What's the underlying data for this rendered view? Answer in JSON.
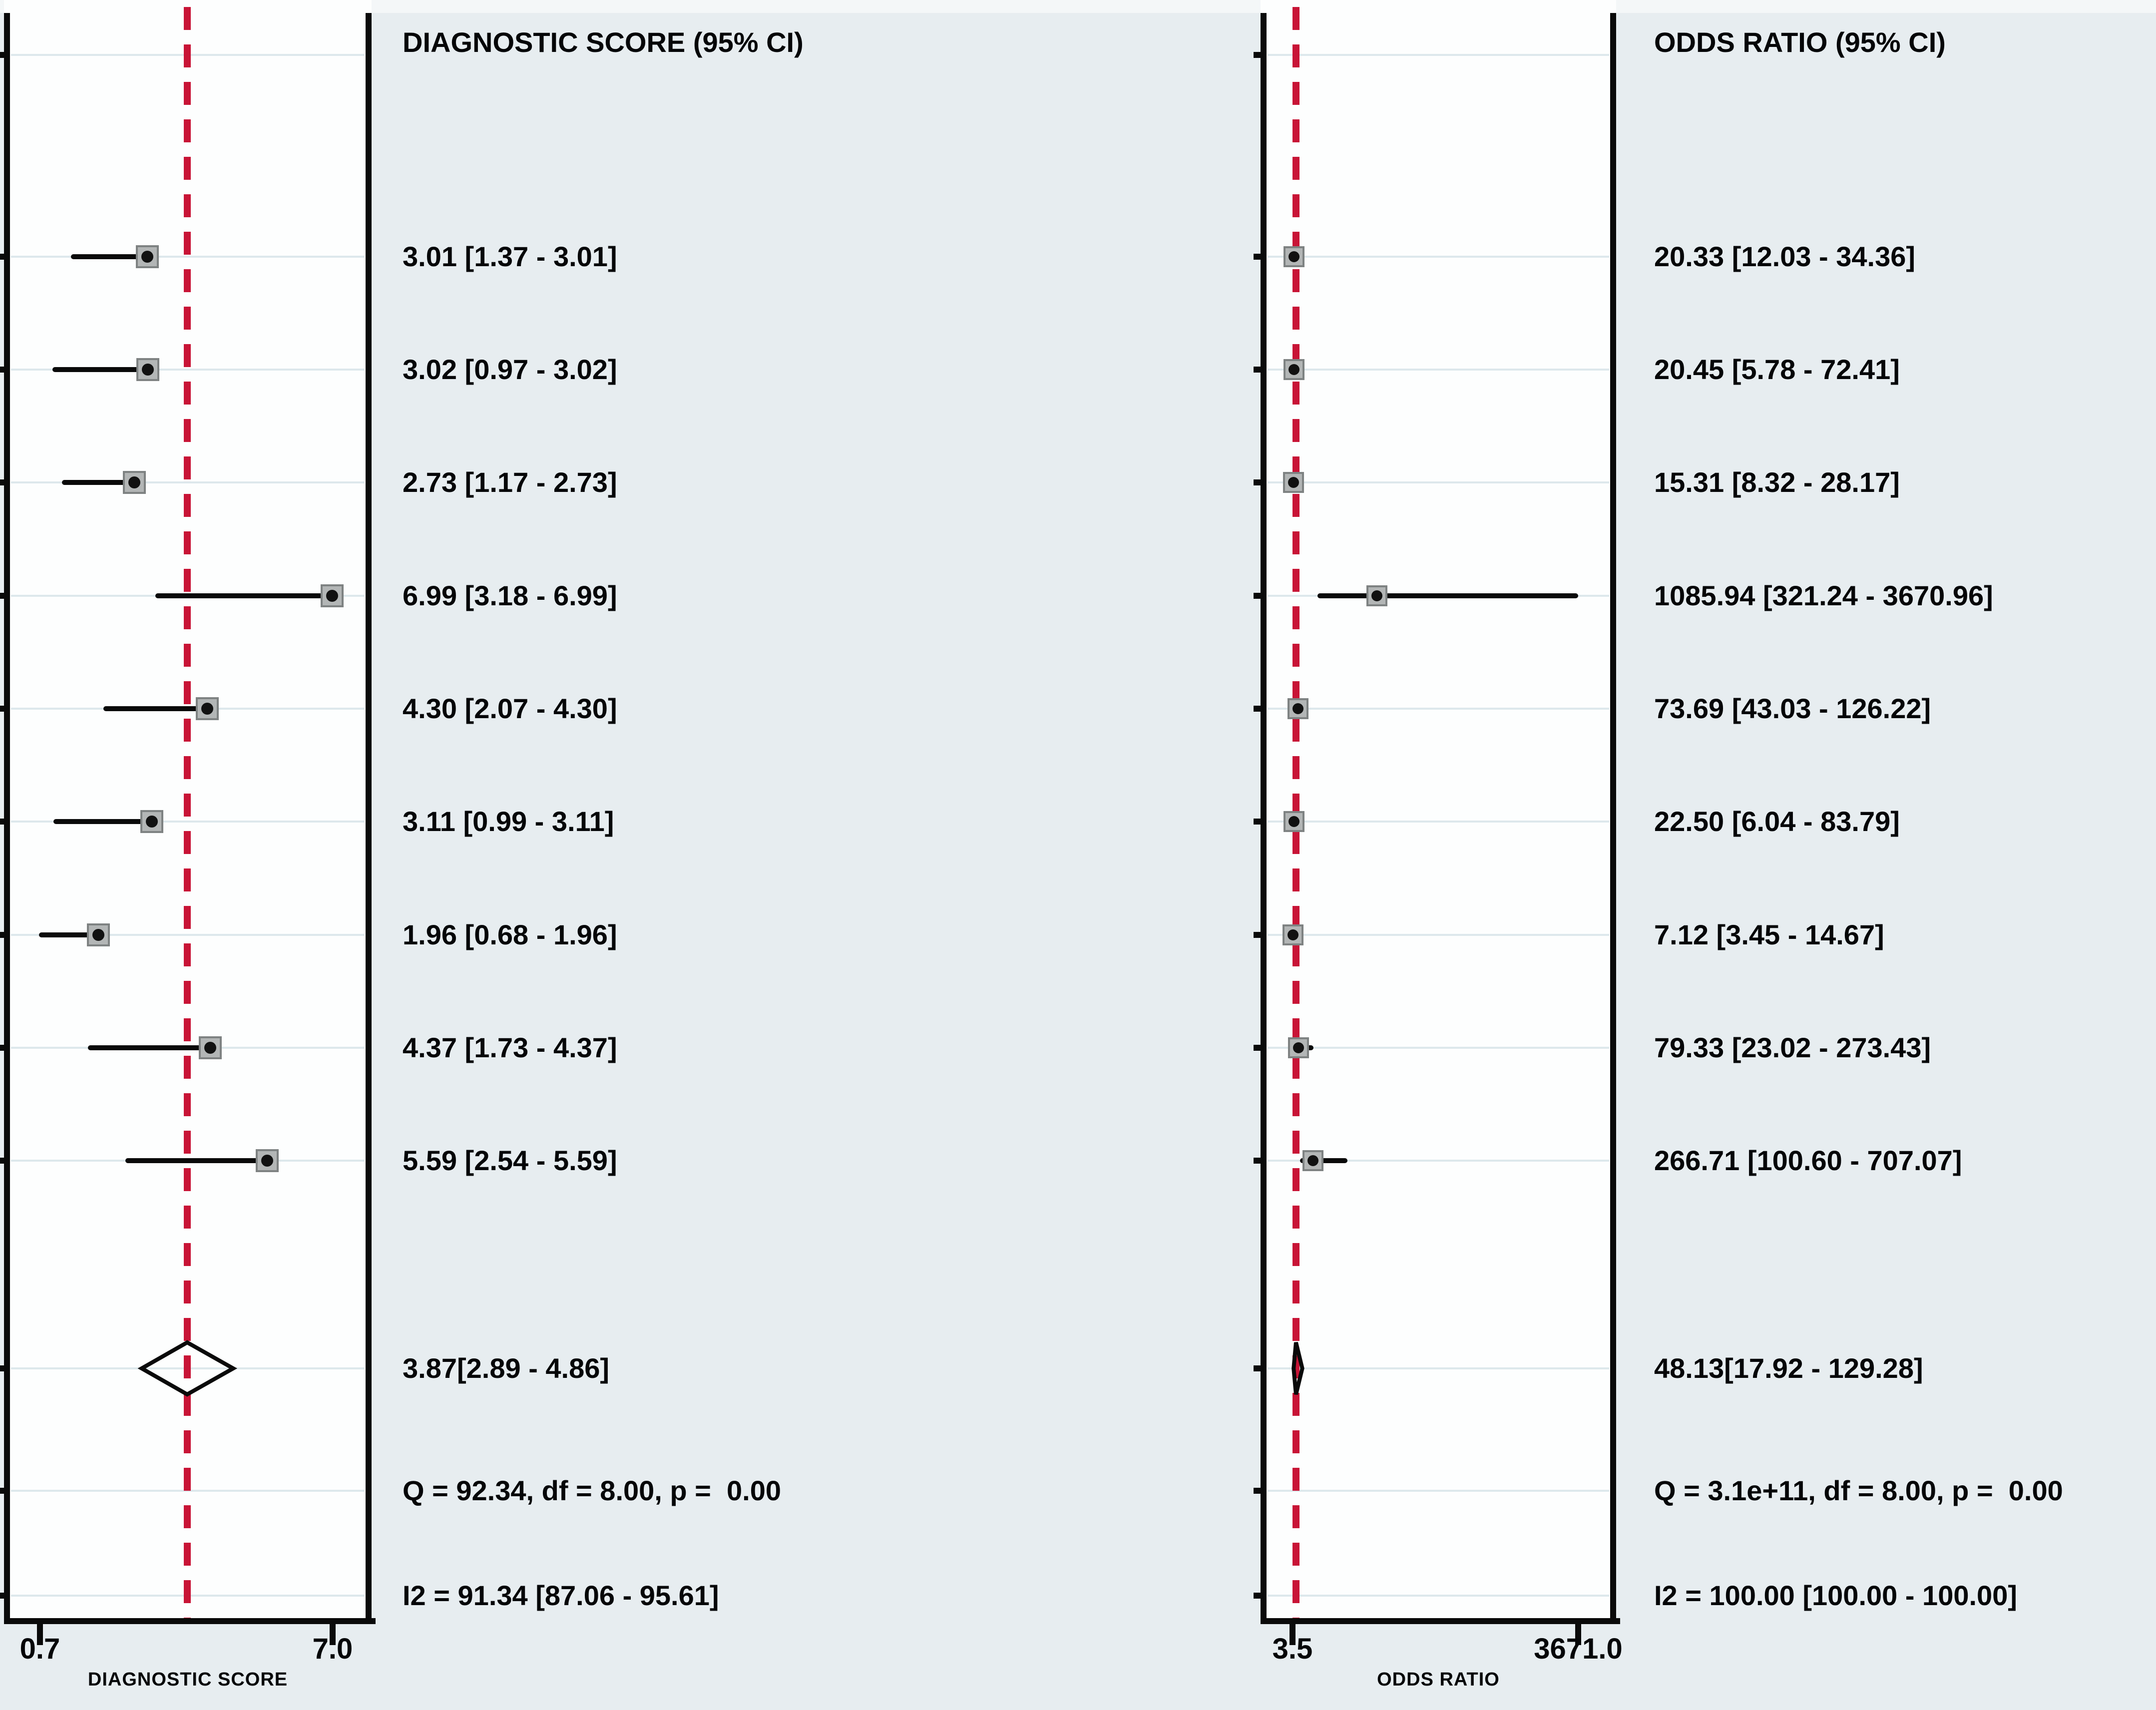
{
  "colors": {
    "background": "#e7edf0",
    "plot_background": "#fdfefe",
    "gridline": "#dde8ec",
    "axis": "#0a0a0a",
    "pooled_line_red": "#c81436",
    "marker_fill": "#b3b6b6",
    "marker_border": "#7e8282",
    "marker_dot": "#111111",
    "text": "#050608"
  },
  "chart_data": [
    {
      "type": "forest",
      "panel": "left",
      "title": "DIAGNOSTIC SCORE (95% CI)",
      "x_axis": {
        "scale": "linear",
        "min": 0.7,
        "max": 7.0,
        "min_label": "0.7",
        "max_label": "7.0",
        "caption": "DIAGNOSTIC SCORE"
      },
      "pooled_reference_line": 3.87,
      "grid": true,
      "studies": [
        {
          "estimate": 3.01,
          "ci_lower": 1.37,
          "ci_upper": 3.01,
          "label": "3.01 [1.37 - 3.01]"
        },
        {
          "estimate": 3.02,
          "ci_lower": 0.97,
          "ci_upper": 3.02,
          "label": "3.02 [0.97 - 3.02]"
        },
        {
          "estimate": 2.73,
          "ci_lower": 1.17,
          "ci_upper": 2.73,
          "label": "2.73 [1.17 - 2.73]"
        },
        {
          "estimate": 6.99,
          "ci_lower": 3.18,
          "ci_upper": 6.99,
          "label": "6.99 [3.18 - 6.99]"
        },
        {
          "estimate": 4.3,
          "ci_lower": 2.07,
          "ci_upper": 4.3,
          "label": "4.30 [2.07 - 4.30]"
        },
        {
          "estimate": 3.11,
          "ci_lower": 0.99,
          "ci_upper": 3.11,
          "label": "3.11 [0.99 - 3.11]"
        },
        {
          "estimate": 1.96,
          "ci_lower": 0.68,
          "ci_upper": 1.96,
          "label": "1.96 [0.68 - 1.96]"
        },
        {
          "estimate": 4.37,
          "ci_lower": 1.73,
          "ci_upper": 4.37,
          "label": "4.37 [1.73 - 4.37]"
        },
        {
          "estimate": 5.59,
          "ci_lower": 2.54,
          "ci_upper": 5.59,
          "label": "5.59 [2.54 - 5.59]"
        }
      ],
      "summary": {
        "estimate": 3.87,
        "ci_lower": 2.89,
        "ci_upper": 4.86,
        "label": "3.87[2.89 - 4.86]"
      },
      "heterogeneity_label": "Q = 92.34, df = 8.00, p =  0.00",
      "i2_label": "I2 = 91.34 [87.06 - 95.61]"
    },
    {
      "type": "forest",
      "panel": "right",
      "title": "ODDS RATIO (95% CI)",
      "x_axis": {
        "scale": "linear",
        "min": 3.5,
        "max": 3671.0,
        "min_label": "3.5",
        "max_label": "3671.0",
        "caption": "ODDS RATIO"
      },
      "pooled_reference_line": 48.13,
      "grid": true,
      "studies": [
        {
          "estimate": 20.33,
          "ci_lower": 12.03,
          "ci_upper": 34.36,
          "label": "20.33 [12.03 - 34.36]"
        },
        {
          "estimate": 20.45,
          "ci_lower": 5.78,
          "ci_upper": 72.41,
          "label": "20.45 [5.78 - 72.41]"
        },
        {
          "estimate": 15.31,
          "ci_lower": 8.32,
          "ci_upper": 28.17,
          "label": "15.31 [8.32 - 28.17]"
        },
        {
          "estimate": 1085.94,
          "ci_lower": 321.24,
          "ci_upper": 3670.96,
          "label": "1085.94 [321.24 - 3670.96]"
        },
        {
          "estimate": 73.69,
          "ci_lower": 43.03,
          "ci_upper": 126.22,
          "label": "73.69 [43.03 - 126.22]"
        },
        {
          "estimate": 22.5,
          "ci_lower": 6.04,
          "ci_upper": 83.79,
          "label": "22.50 [6.04 - 83.79]"
        },
        {
          "estimate": 7.12,
          "ci_lower": 3.45,
          "ci_upper": 14.67,
          "label": "7.12 [3.45 - 14.67]"
        },
        {
          "estimate": 79.33,
          "ci_lower": 23.02,
          "ci_upper": 273.43,
          "label": "79.33 [23.02 - 273.43]"
        },
        {
          "estimate": 266.71,
          "ci_lower": 100.6,
          "ci_upper": 707.07,
          "label": "266.71 [100.60 - 707.07]"
        }
      ],
      "summary": {
        "estimate": 48.13,
        "ci_lower": 17.92,
        "ci_upper": 129.28,
        "label": "48.13[17.92 - 129.28]"
      },
      "heterogeneity_label": "Q = 3.1e+11, df = 8.00, p =  0.00",
      "i2_label": "I2 = 100.00 [100.00 - 100.00]"
    }
  ]
}
